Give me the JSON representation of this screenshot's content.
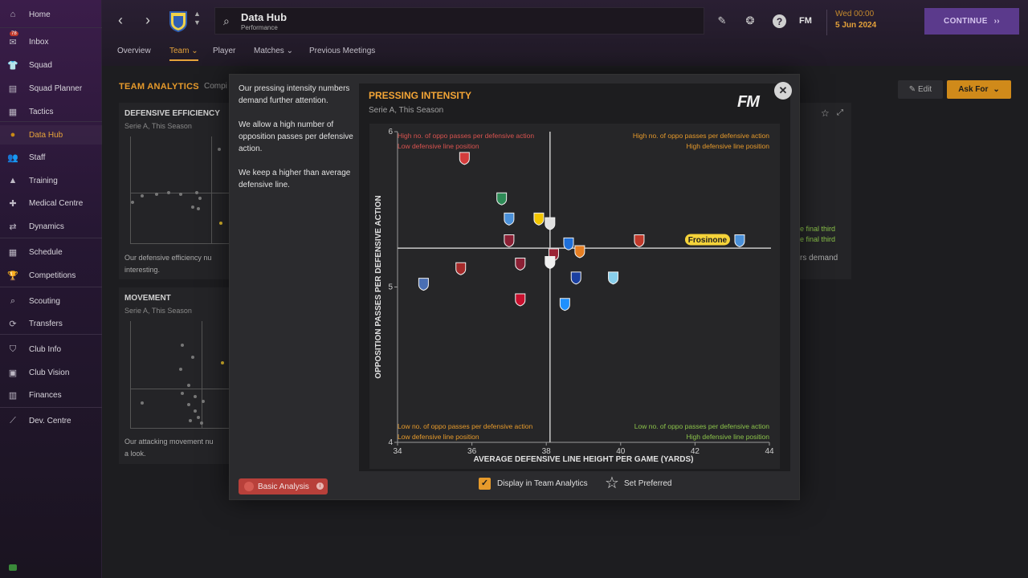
{
  "sidebar": {
    "items": [
      {
        "label": "Home",
        "icon": "home-icon",
        "glyph": "⌂"
      },
      {
        "label": "Inbox",
        "icon": "inbox-icon",
        "glyph": "✉",
        "badge": "78"
      },
      {
        "label": "Squad",
        "icon": "squad-icon",
        "glyph": "👕"
      },
      {
        "label": "Squad Planner",
        "icon": "planner-icon",
        "glyph": "▤"
      },
      {
        "label": "Tactics",
        "icon": "tactics-icon",
        "glyph": "▦"
      },
      {
        "label": "Data Hub",
        "icon": "data-hub-icon",
        "glyph": "●"
      },
      {
        "label": "Staff",
        "icon": "staff-icon",
        "glyph": "👥"
      },
      {
        "label": "Training",
        "icon": "training-icon",
        "glyph": "▲"
      },
      {
        "label": "Medical Centre",
        "icon": "medical-icon",
        "glyph": "✚"
      },
      {
        "label": "Dynamics",
        "icon": "dynamics-icon",
        "glyph": "⇄"
      },
      {
        "label": "Schedule",
        "icon": "schedule-icon",
        "glyph": "▦"
      },
      {
        "label": "Competitions",
        "icon": "trophy-icon",
        "glyph": "🏆"
      },
      {
        "label": "Scouting",
        "icon": "scouting-icon",
        "glyph": "⌕"
      },
      {
        "label": "Transfers",
        "icon": "transfers-icon",
        "glyph": "⟳"
      },
      {
        "label": "Club Info",
        "icon": "club-info-icon",
        "glyph": "⛉"
      },
      {
        "label": "Club Vision",
        "icon": "club-vision-icon",
        "glyph": "▣"
      },
      {
        "label": "Finances",
        "icon": "finances-icon",
        "glyph": "▥"
      },
      {
        "label": "Dev. Centre",
        "icon": "dev-centre-icon",
        "glyph": "⟋"
      }
    ]
  },
  "topbar": {
    "title": "Data Hub",
    "subtitle": "Performance",
    "date_line1": "Wed 00:00",
    "date_line2": "5 Jun 2024",
    "continue_label": "CONTINUE",
    "fm_label": "FM",
    "tabs": [
      "Overview",
      "Team",
      "Player",
      "Matches",
      "Previous Meetings"
    ]
  },
  "background": {
    "section_title": "TEAM ANALYTICS",
    "section_sub": "Compi",
    "panel1_title": "DEFENSIVE EFFICIENCY",
    "panel1_sub": "Serie A, This Season",
    "panel1_text1": "Our defensive efficiency nu",
    "panel1_text2": "interesting.",
    "panel2_title": "MOVEMENT",
    "panel2_sub": "Serie A, This Season",
    "panel2_text1": "Our attacking movement nu",
    "panel2_text2": "a look.",
    "right_text1": "e final third",
    "right_text2": "e final third",
    "right_text3": "rs demand",
    "edit_label": "Edit",
    "askfor_label": "Ask For"
  },
  "modal": {
    "notes": [
      "Our pressing intensity numbers demand further attention.",
      "We allow a high number of opposition passes per defensive action.",
      "We keep a higher than average defensive line."
    ],
    "basic_analysis_label": "Basic Analysis",
    "display_label": "Display in Team Analytics",
    "set_preferred_label": "Set Preferred"
  },
  "chart_data": {
    "type": "scatter",
    "title": "PRESSING INTENSITY",
    "subtitle": "Serie A, This Season",
    "xlabel": "AVERAGE DEFENSIVE LINE HEIGHT PER GAME (YARDS)",
    "ylabel": "OPPOSITION PASSES PER DEFENSIVE ACTION",
    "xlim": [
      34,
      44
    ],
    "ylim": [
      4,
      6
    ],
    "xticks": [
      34,
      36,
      38,
      40,
      42,
      44
    ],
    "yticks": [
      4,
      5,
      6
    ],
    "x_divider": 38.1,
    "y_divider": 5.25,
    "quadrants": {
      "top_left": [
        "High no. of oppo passes per defensive action",
        "Low defensive line position"
      ],
      "top_right": [
        "High no. of oppo passes per defensive action",
        "High defensive line position"
      ],
      "bottom_left": [
        "Low no. of oppo passes per defensive action",
        "Low defensive line position"
      ],
      "bottom_right": [
        "Low no. of oppo passes per defensive action",
        "High defensive line position"
      ]
    },
    "quadrant_colors": {
      "top_left": "#d9534f",
      "top_right": "#e69a2b",
      "bottom_left": "#e69a2b",
      "bottom_right": "#8bc34a"
    },
    "highlight_label": "Frosinone",
    "points": [
      {
        "x": 35.8,
        "y": 5.83,
        "color": "#d43c3c"
      },
      {
        "x": 36.8,
        "y": 5.57,
        "color": "#2e8b57"
      },
      {
        "x": 37.0,
        "y": 5.44,
        "color": "#4a90d9"
      },
      {
        "x": 37.8,
        "y": 5.44,
        "color": "#f2c500"
      },
      {
        "x": 38.1,
        "y": 5.41,
        "color": "#e0e0e0"
      },
      {
        "x": 37.0,
        "y": 5.3,
        "color": "#8b2035"
      },
      {
        "x": 38.6,
        "y": 5.28,
        "color": "#1e6fd9"
      },
      {
        "x": 40.5,
        "y": 5.3,
        "color": "#c0392b"
      },
      {
        "x": 43.2,
        "y": 5.3,
        "color": "#4a90d9",
        "highlight": true
      },
      {
        "x": 38.9,
        "y": 5.23,
        "color": "#e67e22"
      },
      {
        "x": 38.2,
        "y": 5.21,
        "color": "#9b2335"
      },
      {
        "x": 38.1,
        "y": 5.16,
        "color": "#f0f0f0"
      },
      {
        "x": 37.3,
        "y": 5.15,
        "color": "#8b2035"
      },
      {
        "x": 35.7,
        "y": 5.12,
        "color": "#a52a2a"
      },
      {
        "x": 38.8,
        "y": 5.06,
        "color": "#1a3fa0"
      },
      {
        "x": 39.8,
        "y": 5.06,
        "color": "#87ceeb"
      },
      {
        "x": 34.7,
        "y": 5.02,
        "color": "#4a6fb3"
      },
      {
        "x": 37.3,
        "y": 4.92,
        "color": "#c8102e"
      },
      {
        "x": 38.5,
        "y": 4.89,
        "color": "#1e90ff"
      }
    ]
  }
}
